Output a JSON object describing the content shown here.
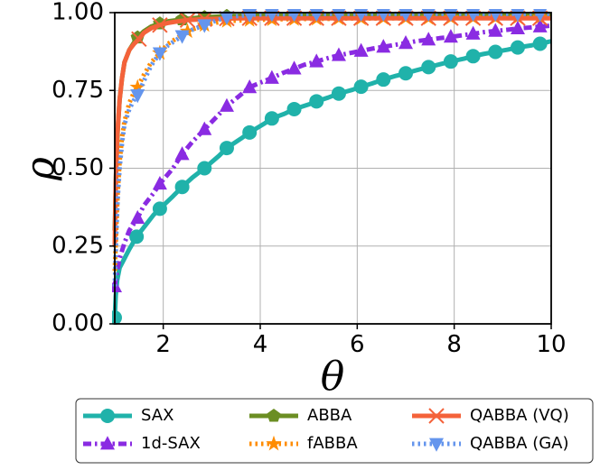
{
  "chart_data": {
    "type": "line",
    "title": "",
    "xlabel": "θ",
    "ylabel": "ρ",
    "xlim": [
      1,
      10
    ],
    "ylim": [
      0,
      1.0
    ],
    "grid": true,
    "xticks": [
      2,
      4,
      6,
      8,
      10
    ],
    "xtick_labels": [
      "2",
      "4",
      "6",
      "8",
      "10"
    ],
    "yticks": [
      0,
      0.25,
      0.5,
      0.75,
      1.0
    ],
    "ytick_labels": [
      "0.00",
      "0.25",
      "0.50",
      "0.75",
      "1.00"
    ],
    "legend_position": "below",
    "series": [
      {
        "name": "SAX",
        "color": "#20b2aa",
        "linestyle": "solid",
        "marker": "circle",
        "x": [
          1.0,
          1.02,
          1.05,
          1.1,
          1.2,
          1.3,
          1.45,
          1.6,
          1.8,
          1.93,
          2.2,
          2.39,
          2.6,
          2.85,
          3.15,
          3.31,
          3.6,
          3.78,
          4.1,
          4.24,
          4.5,
          4.7,
          5.0,
          5.16,
          5.4,
          5.62,
          5.9,
          6.08,
          6.3,
          6.54,
          6.8,
          7.0,
          7.2,
          7.47,
          7.7,
          7.93,
          8.2,
          8.39,
          8.6,
          8.85,
          9.1,
          9.31,
          9.6,
          9.77,
          10.0
        ],
        "y": [
          0.02,
          0.09,
          0.14,
          0.18,
          0.21,
          0.24,
          0.28,
          0.31,
          0.35,
          0.37,
          0.41,
          0.44,
          0.47,
          0.5,
          0.54,
          0.565,
          0.595,
          0.615,
          0.645,
          0.66,
          0.675,
          0.69,
          0.705,
          0.715,
          0.727,
          0.74,
          0.752,
          0.762,
          0.772,
          0.785,
          0.797,
          0.805,
          0.814,
          0.825,
          0.834,
          0.843,
          0.852,
          0.86,
          0.867,
          0.874,
          0.881,
          0.888,
          0.895,
          0.9,
          0.908
        ],
        "marker_indices": [
          0,
          6,
          9,
          11,
          13,
          15,
          17,
          19,
          21,
          23,
          25,
          27,
          29,
          31,
          33,
          35,
          37,
          39,
          41,
          43
        ]
      },
      {
        "name": "1d-SAX",
        "color": "#8a2be2",
        "linestyle": "dashdot",
        "marker": "triangle-up",
        "x": [
          1.0,
          1.05,
          1.1,
          1.2,
          1.3,
          1.47,
          1.6,
          1.8,
          1.93,
          2.2,
          2.39,
          2.6,
          2.85,
          3.1,
          3.31,
          3.55,
          3.78,
          4.0,
          4.24,
          4.45,
          4.7,
          4.9,
          5.16,
          5.4,
          5.62,
          5.85,
          6.08,
          6.3,
          6.54,
          6.8,
          7.0,
          7.2,
          7.47,
          7.7,
          7.93,
          8.2,
          8.39,
          8.6,
          8.85,
          9.1,
          9.31,
          9.55,
          9.77,
          10.0
        ],
        "y": [
          0.12,
          0.17,
          0.21,
          0.26,
          0.3,
          0.34,
          0.38,
          0.42,
          0.45,
          0.5,
          0.545,
          0.585,
          0.625,
          0.665,
          0.7,
          0.73,
          0.76,
          0.775,
          0.79,
          0.805,
          0.82,
          0.832,
          0.843,
          0.854,
          0.863,
          0.87,
          0.877,
          0.884,
          0.89,
          0.897,
          0.902,
          0.908,
          0.913,
          0.918,
          0.922,
          0.928,
          0.932,
          0.937,
          0.941,
          0.945,
          0.949,
          0.952,
          0.955,
          0.958
        ],
        "marker_indices": [
          0,
          5,
          8,
          10,
          12,
          14,
          16,
          18,
          20,
          22,
          24,
          26,
          28,
          30,
          32,
          34,
          36,
          38,
          40,
          42
        ]
      },
      {
        "name": "ABBA",
        "color": "#6b8e23",
        "linestyle": "solid",
        "marker": "pentagon",
        "x": [
          1.0,
          1.03,
          1.06,
          1.1,
          1.15,
          1.2,
          1.3,
          1.4,
          1.47,
          1.6,
          1.75,
          1.93,
          2.1,
          2.39,
          2.6,
          2.85,
          3.1,
          3.31,
          3.6,
          3.78,
          4.0,
          4.24,
          4.5,
          4.7,
          5.0,
          5.16,
          5.4,
          5.62,
          5.9,
          6.08,
          6.3,
          6.54,
          6.8,
          7.0,
          7.2,
          7.47,
          7.7,
          7.93,
          8.2,
          8.39,
          8.6,
          8.85,
          9.1,
          9.31,
          9.6,
          9.77,
          10.0
        ],
        "y": [
          0.3,
          0.5,
          0.62,
          0.72,
          0.79,
          0.84,
          0.88,
          0.905,
          0.92,
          0.94,
          0.955,
          0.965,
          0.972,
          0.978,
          0.982,
          0.985,
          0.987,
          0.989,
          0.99,
          0.99,
          0.991,
          0.991,
          0.992,
          0.992,
          0.992,
          0.993,
          0.993,
          0.993,
          0.993,
          0.993,
          0.993,
          0.994,
          0.994,
          0.994,
          0.994,
          0.994,
          0.994,
          0.994,
          0.994,
          0.994,
          0.995,
          0.995,
          0.995,
          0.995,
          0.995,
          0.995,
          0.995
        ],
        "marker_indices": [
          8,
          11,
          13,
          15,
          17,
          19,
          21,
          23,
          25,
          27,
          29,
          31,
          33,
          35,
          37,
          39,
          41,
          43,
          45
        ]
      },
      {
        "name": "fABBA",
        "color": "#ff8c00",
        "linestyle": "dotted",
        "marker": "star",
        "x": [
          1.0,
          1.03,
          1.06,
          1.1,
          1.15,
          1.2,
          1.3,
          1.4,
          1.47,
          1.6,
          1.75,
          1.93,
          2.1,
          2.3,
          2.5,
          2.85,
          3.1,
          3.31,
          3.6,
          3.78,
          4.0,
          4.24,
          4.5,
          4.7,
          5.0,
          5.16,
          5.4,
          5.62,
          5.9,
          6.08,
          6.3,
          6.54,
          6.8,
          7.0,
          7.2,
          7.47,
          7.7,
          7.93,
          8.2,
          8.39,
          8.6,
          8.85,
          9.1,
          9.31,
          9.6,
          9.77,
          10.0
        ],
        "y": [
          0.17,
          0.3,
          0.42,
          0.52,
          0.6,
          0.65,
          0.71,
          0.745,
          0.76,
          0.8,
          0.84,
          0.87,
          0.9,
          0.92,
          0.94,
          0.96,
          0.968,
          0.973,
          0.975,
          0.976,
          0.977,
          0.978,
          0.979,
          0.979,
          0.98,
          0.98,
          0.98,
          0.981,
          0.981,
          0.981,
          0.981,
          0.982,
          0.982,
          0.982,
          0.982,
          0.982,
          0.983,
          0.983,
          0.983,
          0.983,
          0.983,
          0.983,
          0.984,
          0.984,
          0.984,
          0.984,
          0.984
        ],
        "marker_indices": [
          8,
          11,
          14,
          15,
          17,
          19,
          21,
          23,
          25,
          27,
          29,
          31,
          33,
          35,
          37,
          39,
          41,
          43,
          45
        ]
      },
      {
        "name": "QABBA (VQ)",
        "color": "#f4623a",
        "linestyle": "solid",
        "marker": "x",
        "x": [
          1.0,
          1.02,
          1.05,
          1.1,
          1.15,
          1.2,
          1.3,
          1.4,
          1.5,
          1.6,
          1.75,
          1.93,
          2.1,
          2.3,
          2.5,
          2.85,
          3.1,
          3.31,
          3.6,
          3.78,
          4.0,
          4.24,
          4.5,
          4.7,
          5.0,
          5.16,
          5.4,
          5.62,
          5.9,
          6.08,
          6.3,
          6.54,
          6.8,
          7.0,
          7.2,
          7.47,
          7.7,
          7.93,
          8.2,
          8.39,
          8.6,
          8.85,
          9.1,
          9.31,
          9.6,
          9.77,
          10.0
        ],
        "y": [
          0.25,
          0.45,
          0.6,
          0.72,
          0.79,
          0.84,
          0.88,
          0.9,
          0.915,
          0.935,
          0.95,
          0.96,
          0.967,
          0.972,
          0.976,
          0.979,
          0.98,
          0.981,
          0.982,
          0.982,
          0.982,
          0.982,
          0.982,
          0.982,
          0.982,
          0.982,
          0.982,
          0.982,
          0.982,
          0.982,
          0.982,
          0.982,
          0.982,
          0.982,
          0.982,
          0.982,
          0.982,
          0.982,
          0.982,
          0.982,
          0.982,
          0.982,
          0.982,
          0.982,
          0.982,
          0.982,
          0.982
        ],
        "marker_indices": [
          8,
          11,
          14,
          15,
          17,
          19,
          21,
          23,
          25,
          27,
          29,
          31,
          33,
          35,
          37,
          39,
          41,
          43,
          45
        ]
      },
      {
        "name": "QABBA (GA)",
        "color": "#6495ed",
        "linestyle": "dotted",
        "marker": "triangle-down",
        "x": [
          1.0,
          1.03,
          1.06,
          1.1,
          1.15,
          1.2,
          1.3,
          1.4,
          1.47,
          1.6,
          1.75,
          1.93,
          2.1,
          2.39,
          2.6,
          2.85,
          3.1,
          3.31,
          3.6,
          3.78,
          4.0,
          4.24,
          4.5,
          4.7,
          5.0,
          5.16,
          5.4,
          5.62,
          5.9,
          6.08,
          6.3,
          6.54,
          6.8,
          7.0,
          7.2,
          7.47,
          7.7,
          7.93,
          8.2,
          8.39,
          8.6,
          8.85,
          9.1,
          9.31,
          9.6,
          9.77,
          10.0
        ],
        "y": [
          0.12,
          0.28,
          0.4,
          0.5,
          0.58,
          0.64,
          0.69,
          0.72,
          0.735,
          0.78,
          0.83,
          0.87,
          0.895,
          0.925,
          0.945,
          0.96,
          0.975,
          0.985,
          0.99,
          0.993,
          0.994,
          0.995,
          0.995,
          0.995,
          0.996,
          0.996,
          0.996,
          0.996,
          0.996,
          0.996,
          0.996,
          0.996,
          0.996,
          0.996,
          0.996,
          0.996,
          0.996,
          0.996,
          0.996,
          0.996,
          0.996,
          0.996,
          0.996,
          0.996,
          0.996,
          0.996,
          0.996
        ],
        "marker_indices": [
          8,
          11,
          13,
          15,
          17,
          19,
          21,
          23,
          25,
          27,
          29,
          31,
          33,
          35,
          37,
          39,
          41,
          43,
          45
        ]
      }
    ]
  }
}
